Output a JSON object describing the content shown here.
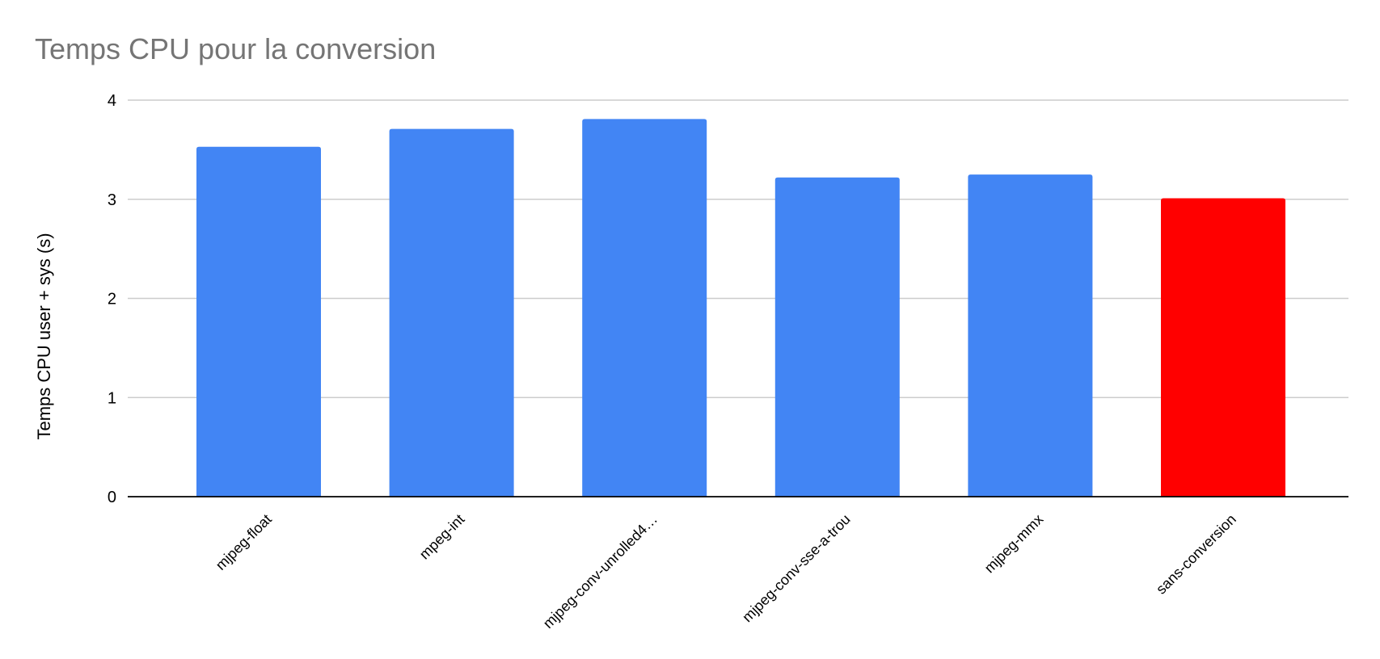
{
  "chart_data": {
    "type": "bar",
    "title": "Temps CPU pour la conversion",
    "xlabel": "",
    "ylabel": "Temps CPU user + sys (s)",
    "categories": [
      "mjpeg-float",
      "mpeg-int",
      "mjpeg-conv-unrolled4…",
      "mjpeg-conv-sse-a-trou",
      "mjpeg-mmx",
      "sans-conversion"
    ],
    "values": [
      3.53,
      3.71,
      3.81,
      3.22,
      3.25,
      3.01
    ],
    "colors": [
      "#4285f4",
      "#4285f4",
      "#4285f4",
      "#4285f4",
      "#4285f4",
      "#ff0000"
    ],
    "ylim": [
      0,
      4
    ],
    "yticks": [
      "0",
      "1",
      "2",
      "3",
      "4"
    ],
    "grid": true,
    "legend": "none"
  }
}
